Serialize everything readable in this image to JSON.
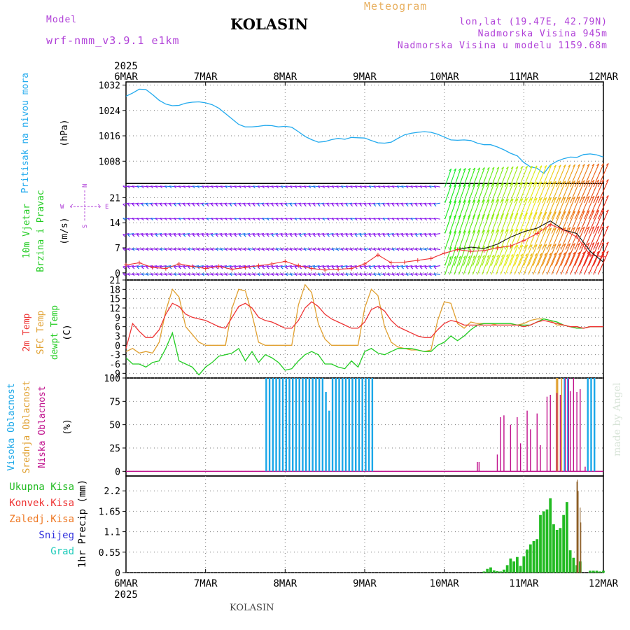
{
  "header": {
    "model_label": "Model",
    "model_name": "wrf-nmm_v3.9.1 e1km",
    "station": "KOLASIN",
    "meteogram": "Meteogram",
    "lonlat": "lon,lat (19.47E, 42.79N)",
    "altitude": "Nadmorska Visina 945m",
    "model_altitude": "Nadmorska Visina u modelu 1159.68m"
  },
  "footer": {
    "station": "KOLASIN",
    "credit": "made by Angel"
  },
  "colors": {
    "pressure": "#22aaee",
    "temp2m": "#ee3333",
    "sfc": "#e0a030",
    "dewpt": "#22cc22",
    "cloud_high": "#1aa7e8",
    "cloud_mid": "#e0a030",
    "cloud_low": "#c0108c",
    "rain_total": "#22bb22",
    "rain_conv": "#ee3333",
    "rain_frozen": "#ee7722",
    "snow": "#3333dd",
    "hail": "#22ccbb",
    "wind_label": "#22cc22",
    "wind_compass": "#b040d8"
  },
  "chart_data": {
    "time_axis": {
      "year": "2025",
      "ticks": [
        "6MAR",
        "7MAR",
        "8MAR",
        "9MAR",
        "10MAR",
        "11MAR",
        "12MAR"
      ]
    },
    "panels": [
      {
        "id": "pressure",
        "type": "line",
        "labels": [
          "Pritisak na nivou mora"
        ],
        "unit": "(hPa)",
        "yticks": [
          "1008",
          "1016",
          "1024",
          "1032"
        ],
        "ylim": [
          1001,
          1033
        ],
        "x": [
          0,
          2,
          4,
          6,
          8,
          10,
          12,
          14,
          16,
          18,
          20,
          22,
          24,
          26,
          28,
          30,
          32,
          34,
          36,
          38,
          40,
          42,
          44,
          46,
          48,
          50,
          52,
          54,
          56,
          58,
          60,
          62,
          64,
          66,
          68,
          70,
          72,
          74,
          76,
          78,
          80,
          82,
          84,
          86,
          88,
          90,
          92,
          94,
          96,
          98,
          100,
          102,
          104,
          106,
          108,
          110,
          112,
          114,
          116,
          118,
          120,
          122,
          124,
          126,
          128,
          130,
          132,
          134,
          136,
          138,
          140,
          142,
          144
        ],
        "series": [
          {
            "values": [
              1028.5,
              1029.5,
              1030.7,
              1030.6,
              1029.0,
              1027.2,
              1026.0,
              1025.5,
              1025.6,
              1026.3,
              1026.6,
              1026.7,
              1026.4,
              1025.8,
              1024.7,
              1023.0,
              1021.3,
              1019.6,
              1018.8,
              1018.8,
              1019.0,
              1019.3,
              1019.2,
              1018.8,
              1019.0,
              1018.7,
              1017.3,
              1015.8,
              1014.8,
              1014.0,
              1014.2,
              1014.8,
              1015.2,
              1014.9,
              1015.5,
              1015.4,
              1015.3,
              1014.5,
              1013.8,
              1013.7,
              1014.0,
              1015.2,
              1016.3,
              1016.8,
              1017.1,
              1017.3,
              1017.1,
              1016.5,
              1015.6,
              1014.7,
              1014.6,
              1014.7,
              1014.5,
              1013.7,
              1013.2,
              1013.2,
              1012.5,
              1011.6,
              1010.5,
              1009.7,
              1007.6,
              1006.2,
              1005.8,
              1004.1,
              1006.8,
              1008.0,
              1008.8,
              1009.3,
              1009.2,
              1010.1,
              1010.3,
              1010.0,
              1009.3
            ]
          }
        ]
      },
      {
        "id": "wind",
        "type": "line",
        "labels": [
          "10m Vjetar",
          "Brzina i Pravac"
        ],
        "unit": "(m/s)",
        "yticks": [
          "0",
          "7",
          "14",
          "21"
        ],
        "ylim": [
          -2,
          25
        ],
        "compass": {
          "n": "N",
          "s": "S",
          "e": "E",
          "w": "W"
        },
        "x": [
          0,
          4,
          8,
          12,
          16,
          20,
          24,
          28,
          32,
          36,
          40,
          44,
          48,
          52,
          56,
          60,
          64,
          68,
          72,
          76,
          80,
          84,
          88,
          92,
          96,
          100,
          104,
          108,
          112,
          116,
          120,
          124,
          128,
          132,
          136,
          140,
          144
        ],
        "series": [
          {
            "name": "speed",
            "values": [
              2.2,
              2.8,
              1.5,
              1.2,
              2.5,
              1.8,
              1.2,
              1.8,
              1.0,
              1.5,
              2.0,
              2.5,
              3.2,
              2.0,
              1.2,
              0.8,
              1.0,
              1.2,
              2.5,
              5.0,
              2.8,
              3.0,
              3.5,
              4.0,
              5.5,
              6.5,
              6.0,
              6.2,
              7.0,
              7.5,
              9.0,
              11.0,
              13.5,
              12.0,
              10.0,
              5.0,
              4.5
            ]
          },
          {
            "name": "black",
            "values": [
              null,
              null,
              null,
              null,
              null,
              null,
              null,
              null,
              null,
              null,
              null,
              null,
              null,
              null,
              null,
              null,
              null,
              null,
              null,
              null,
              null,
              null,
              null,
              null,
              null,
              6.5,
              7.2,
              6.8,
              8.0,
              10.0,
              11.5,
              12.5,
              14.5,
              12.0,
              11.0,
              6.0,
              3.0
            ]
          }
        ]
      },
      {
        "id": "temperature",
        "type": "line",
        "labels": [
          "2m Temp",
          "SFC Temp",
          "dewpt Temp"
        ],
        "unit": "(C)",
        "yticks": [
          "-9",
          "-6",
          "-3",
          "0",
          "3",
          "6",
          "9",
          "12",
          "15",
          "18",
          "21"
        ],
        "ylim": [
          -10.5,
          21
        ],
        "x": [
          0,
          2,
          4,
          6,
          8,
          10,
          12,
          14,
          16,
          18,
          20,
          22,
          24,
          26,
          28,
          30,
          32,
          34,
          36,
          38,
          40,
          42,
          44,
          46,
          48,
          50,
          52,
          54,
          56,
          58,
          60,
          62,
          64,
          66,
          68,
          70,
          72,
          74,
          76,
          78,
          80,
          82,
          84,
          86,
          88,
          90,
          92,
          94,
          96,
          98,
          100,
          102,
          104,
          106,
          108,
          110,
          112,
          114,
          116,
          118,
          120,
          122,
          124,
          126,
          128,
          130,
          132,
          134,
          136,
          138,
          140,
          142,
          144
        ],
        "series": [
          {
            "name": "2m Temp",
            "values": [
              -1,
              7,
              4.5,
              2.5,
              2.5,
              5,
              10,
              13.5,
              12.5,
              10,
              9,
              8.5,
              8,
              7,
              6,
              5.5,
              9,
              12.5,
              13.5,
              12,
              9,
              8,
              7.5,
              6.5,
              5.5,
              5.5,
              8,
              12,
              14,
              12.5,
              10,
              8.5,
              7.5,
              6.5,
              5.5,
              5.5,
              7.5,
              11.5,
              12.5,
              11,
              8,
              6,
              5,
              4,
              3,
              2.5,
              2.5,
              5,
              7,
              8,
              7.5,
              6.5,
              6.5,
              6.5,
              6.5,
              6.5,
              6.5,
              6.5,
              6.5,
              6.5,
              6,
              6.5,
              7.5,
              8,
              7.5,
              7,
              6.5,
              6,
              6,
              5.5,
              6,
              6,
              6
            ]
          },
          {
            "name": "SFC Temp",
            "values": [
              -2,
              -1,
              -2.5,
              -2,
              -2.5,
              1,
              11,
              18,
              15.5,
              6,
              3.5,
              1,
              0,
              0,
              0,
              0,
              12,
              18,
              17.5,
              10,
              1,
              0,
              0,
              0,
              0,
              0,
              13,
              19.5,
              17,
              7,
              2,
              0,
              0,
              0,
              0,
              0,
              12,
              18,
              16,
              6,
              1,
              -0.5,
              -1,
              -1.5,
              -1.5,
              -2,
              -1.5,
              8,
              14,
              13.5,
              7,
              5.5,
              7.5,
              7,
              7,
              7,
              6.5,
              6.5,
              6.5,
              6.5,
              7,
              8,
              8.5,
              8.5,
              8,
              6.5,
              6.5,
              6,
              5.5,
              5.5,
              6,
              6,
              6
            ]
          },
          {
            "name": "dewpt Temp",
            "values": [
              -4,
              -6,
              -6,
              -7,
              -5.5,
              -5,
              -1,
              4,
              -5,
              -6,
              -7,
              -9.5,
              -7,
              -5.5,
              -3.5,
              -3,
              -2.5,
              -1,
              -5,
              -2,
              -5.5,
              -3,
              -4,
              -5.5,
              -8,
              -7.5,
              -5,
              -3,
              -2,
              -3,
              -6,
              -6,
              -7,
              -7.5,
              -5,
              -7,
              -2,
              -1,
              -2.5,
              -3,
              -2,
              -1,
              -1,
              -1,
              -1.5,
              -2,
              -2,
              0,
              1,
              3,
              1.5,
              3,
              5,
              6.5,
              7,
              7,
              7,
              7,
              7,
              6.5,
              6.5,
              6.5,
              7.5,
              8.5,
              8,
              7.5,
              6.5,
              6,
              5.5,
              5.5,
              6,
              6,
              6
            ]
          }
        ]
      },
      {
        "id": "clouds",
        "type": "bar",
        "labels": [
          "Visoka Oblacnost",
          "Srednja Oblacnost",
          "Niska Oblacnost"
        ],
        "unit": "(%)",
        "yticks": [
          "0",
          "25",
          "50",
          "75",
          "100"
        ],
        "ylim": [
          -5,
          100
        ],
        "high_x": [
          42.3,
          43.3,
          44.3,
          45.3,
          46.3,
          47.3,
          48.3,
          49.3,
          50.3,
          51.3,
          52.3,
          53.3,
          54.3,
          55.3,
          56.3,
          57.3,
          58.3,
          59.3,
          60.3,
          61.3,
          62.3,
          63.3,
          64.3,
          65.3,
          66.3,
          67.3,
          68.3,
          69.3,
          70.3,
          71.3,
          72.3,
          73.3,
          74.3,
          132.3,
          133.3,
          139.3,
          140.3,
          141.3
        ],
        "high_v": [
          100,
          100,
          100,
          100,
          100,
          100,
          100,
          100,
          100,
          100,
          100,
          100,
          100,
          100,
          100,
          100,
          100,
          100,
          85,
          65,
          100,
          100,
          100,
          100,
          100,
          100,
          100,
          100,
          100,
          100,
          100,
          100,
          100,
          100,
          100,
          100,
          100,
          100
        ],
        "mid_x": [
          129.8,
          130.2,
          131.4
        ],
        "mid_v": [
          100,
          100,
          100
        ],
        "low_x": [
          106.0,
          106.5,
          112.0,
          113.0,
          114.0,
          116.0,
          118.0,
          119.0,
          121.0,
          122.0,
          124.0,
          125.0,
          127.0,
          128.0,
          130.0,
          131.0,
          132.5,
          133.5,
          134.0,
          135.0,
          136.0,
          137.0,
          138.5
        ],
        "low_v": [
          10,
          10,
          18,
          58,
          60,
          50,
          58,
          30,
          65,
          45,
          62,
          28,
          80,
          82,
          84,
          82,
          100,
          100,
          86,
          100,
          85,
          88,
          5
        ]
      },
      {
        "id": "precip",
        "type": "bar",
        "labels": [
          "Ukupna Kisa",
          "Konvek.Kisa",
          "Zaledj.Kisa",
          "Snijeg",
          "Grad"
        ],
        "ylabel": "1hr Precip (mm)",
        "yticks": [
          "0",
          "0.55",
          "1.1",
          "1.65",
          "2.2"
        ],
        "ylim": [
          0,
          2.6
        ],
        "x": [
          108,
          109,
          110,
          111,
          112,
          113,
          114,
          115,
          116,
          117,
          118,
          119,
          120,
          121,
          122,
          123,
          124,
          125,
          126,
          127,
          128,
          129,
          130,
          131,
          132,
          133,
          134,
          135,
          136,
          137,
          140,
          141,
          142,
          143,
          144
        ],
        "values": [
          0.03,
          0.1,
          0.14,
          0.06,
          0.04,
          0.03,
          0.08,
          0.2,
          0.38,
          0.3,
          0.42,
          0.18,
          0.44,
          0.62,
          0.76,
          0.85,
          0.9,
          1.55,
          1.65,
          1.7,
          2.0,
          1.3,
          1.15,
          1.2,
          1.55,
          1.9,
          0.6,
          0.4,
          0.2,
          0.3,
          0.05,
          0.05,
          0.05,
          0.03,
          0.05
        ],
        "conv_x": [
          136.0,
          136.2,
          136.4,
          137.0,
          137.2
        ],
        "conv_v": [
          2.45,
          2.5,
          2.2,
          1.75,
          1.35
        ]
      }
    ]
  }
}
